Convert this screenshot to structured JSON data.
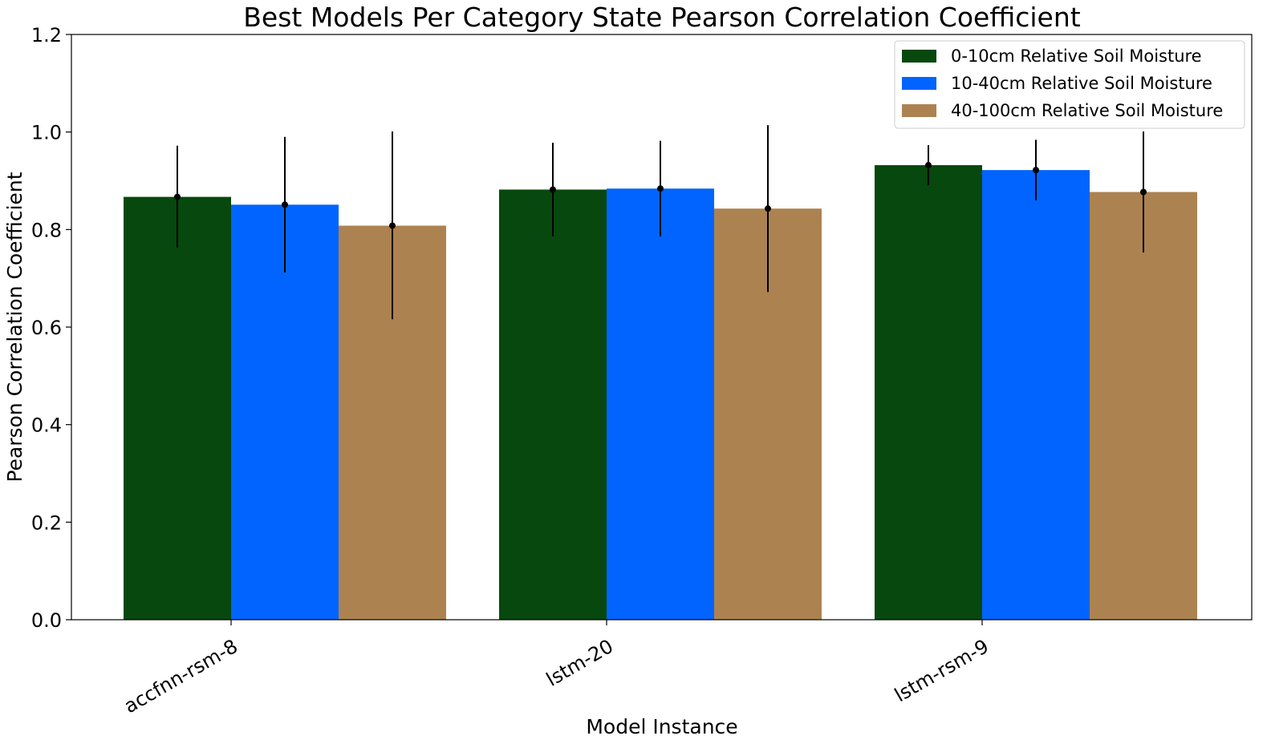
{
  "chart_data": {
    "type": "bar",
    "title": "Best Models Per Category State Pearson Correlation Coefficient",
    "xlabel": "Model Instance",
    "ylabel": "Pearson Correlation Coefficient",
    "ylim": [
      0,
      1.2
    ],
    "yticks": [
      "0.0",
      "0.2",
      "0.4",
      "0.6",
      "0.8",
      "1.0",
      "1.2"
    ],
    "categories": [
      "accfnn-rsm-8",
      "lstm-20",
      "lstm-rsm-9"
    ],
    "legend_position": "top-right",
    "series": [
      {
        "name": "0-10cm Relative Soil Moisture",
        "color": "#07480e",
        "values": [
          0.867,
          0.882,
          0.932
        ],
        "err_low": [
          0.763,
          0.786,
          0.891
        ],
        "err_high": [
          0.972,
          0.978,
          0.973
        ]
      },
      {
        "name": "10-40cm Relative Soil Moisture",
        "color": "#0264fe",
        "values": [
          0.851,
          0.884,
          0.922
        ],
        "err_low": [
          0.712,
          0.786,
          0.86
        ],
        "err_high": [
          0.99,
          0.982,
          0.984
        ]
      },
      {
        "name": "40-100cm Relative Soil Moisture",
        "color": "#ac8251",
        "values": [
          0.808,
          0.843,
          0.877
        ],
        "err_low": [
          0.616,
          0.672,
          0.753
        ],
        "err_high": [
          1.001,
          1.014,
          1.001
        ]
      }
    ]
  }
}
